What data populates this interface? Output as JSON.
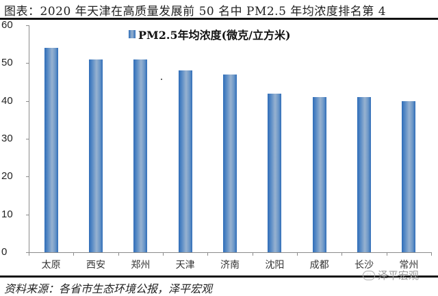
{
  "title": "图表：2020 年天津在高质量发展前 50 名中 PM2.5 年均浓度排名第 4",
  "source": "资料来源：各省市生态环境公报，泽平宏观",
  "watermark": "泽平宏观",
  "colors": {
    "bar": "#2f6db8",
    "bar_highlight": "#97b2d0",
    "axis": "#8a8a8a"
  },
  "chart_data": {
    "type": "bar",
    "title": "图表：2020 年天津在高质量发展前 50 名中 PM2.5 年均浓度排名第 4",
    "categories": [
      "太原",
      "西安",
      "郑州",
      "天津",
      "济南",
      "沈阳",
      "成都",
      "长沙",
      "常州"
    ],
    "series": [
      {
        "name": "PM2.5年均浓度(微克/立方米)",
        "values": [
          54,
          51,
          51,
          48,
          47,
          42,
          41,
          41,
          40
        ]
      }
    ],
    "xlabel": "",
    "ylabel": "",
    "ylim": [
      0,
      60
    ],
    "yticks": [
      0,
      10,
      20,
      30,
      40,
      50,
      60
    ],
    "grid": false,
    "legend_position": "top-center"
  }
}
